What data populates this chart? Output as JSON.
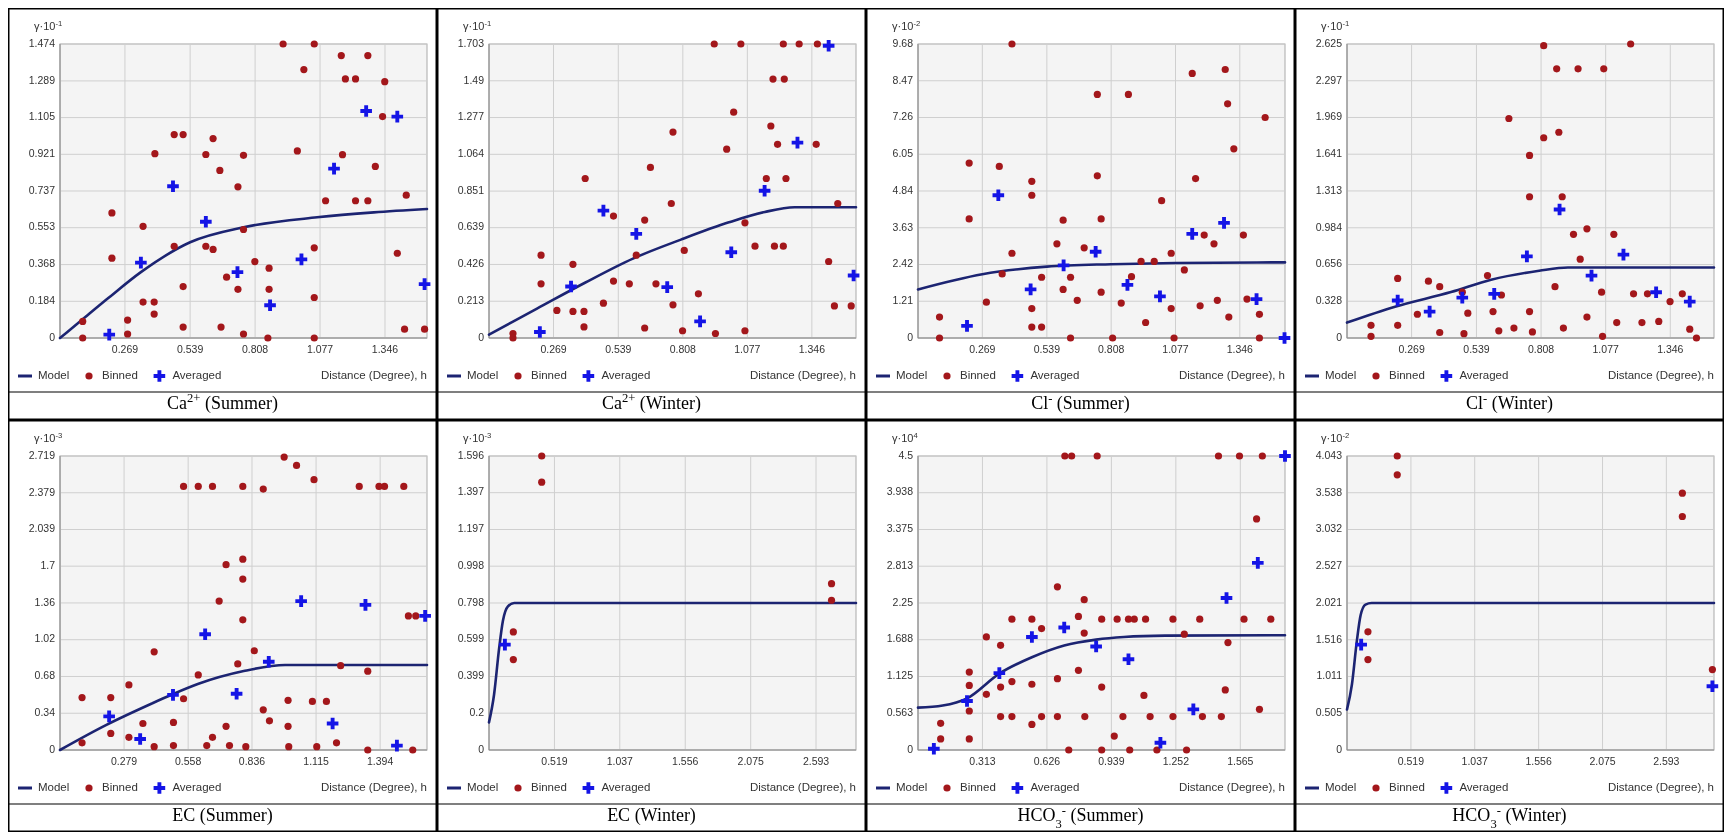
{
  "chart_data": [
    {
      "type": "scatter",
      "title": "Ca$^{2+}$ (Summer)",
      "ylabel": "γ·10$^{-1}$",
      "xlabel": "Distance (Degree), h",
      "xlim": [
        0,
        1.52
      ],
      "ylim": [
        0,
        1.474
      ],
      "xticks": [
        0.269,
        0.539,
        0.808,
        1.077,
        1.346
      ],
      "yticks": [
        0,
        0.184,
        0.368,
        0.553,
        0.737,
        0.921,
        1.105,
        1.289,
        1.474
      ],
      "grid": true,
      "legend": "bottom",
      "series": [
        {
          "name": "Model",
          "type": "line",
          "color": "#1c2472",
          "marker": "none",
          "x": [
            0,
            0.1,
            0.2,
            0.335,
            0.539,
            0.76,
            1.065,
            1.3,
            1.52
          ],
          "values": [
            0,
            0.1,
            0.2,
            0.33,
            0.48,
            0.555,
            0.605,
            0.63,
            0.647
          ]
        },
        {
          "name": "Binned",
          "type": "scatter",
          "color": "#a3171b",
          "marker": "circle",
          "x": [
            0.094,
            0.094,
            0.215,
            0.215,
            0.28,
            0.28,
            0.344,
            0.344,
            0.39,
            0.39,
            0.393,
            0.473,
            0.51,
            0.473,
            0.51,
            0.51,
            0.604,
            0.634,
            0.662,
            0.604,
            0.634,
            0.737,
            0.76,
            0.76,
            0.737,
            0.69,
            0.667,
            0.76,
            0.807,
            0.866,
            0.866,
            0.861,
            0.924,
            1.01,
            1.053,
            0.983,
            1.053,
            1.053,
            1.053,
            1.1,
            1.165,
            1.182,
            1.224,
            1.17,
            1.224,
            1.275,
            1.275,
            1.345,
            1.306,
            1.336,
            1.434,
            1.397,
            1.427,
            1.51
          ],
          "values": [
            0.083,
            0,
            0.627,
            0.4,
            0.09,
            0.02,
            0.56,
            0.18,
            0.18,
            0.12,
            0.924,
            1.02,
            1.02,
            0.46,
            0.258,
            0.055,
            0.92,
            1.0,
            0.84,
            0.46,
            0.444,
            0.758,
            0.916,
            0.544,
            0.244,
            0.305,
            0.055,
            0.02,
            0.383,
            0.35,
            0.244,
            0,
            1.474,
            1.346,
            1.474,
            0.938,
            0.452,
            0.203,
            0,
            0.688,
            1.416,
            1.299,
            1.299,
            0.919,
            0.688,
            1.416,
            0.688,
            1.285,
            0.86,
            1.11,
            0.716,
            0.425,
            0.044,
            0.044
          ]
        },
        {
          "name": "Averaged",
          "type": "scatter",
          "color": "#1414e6",
          "marker": "cross",
          "x": [
            0.204,
            0.335,
            0.468,
            0.604,
            0.735,
            0.87,
            1.0,
            1.135,
            1.268,
            1.397,
            1.51
          ],
          "values": [
            0.017,
            0.378,
            0.761,
            0.583,
            0.33,
            0.164,
            0.394,
            0.849,
            1.138,
            1.11,
            0.27
          ]
        }
      ]
    },
    {
      "type": "scatter",
      "title": "Ca$^{2+}$ (Winter)",
      "ylabel": "γ·10$^{-1}$",
      "xlabel": "Distance (Degree), h",
      "xlim": [
        0,
        1.53
      ],
      "ylim": [
        0,
        1.703
      ],
      "xticks": [
        0.269,
        0.539,
        0.808,
        1.077,
        1.346
      ],
      "yticks": [
        0,
        0.213,
        0.426,
        0.639,
        0.851,
        1.064,
        1.277,
        1.49,
        1.703
      ],
      "grid": true,
      "legend": "bottom",
      "series": [
        {
          "name": "Model",
          "type": "line",
          "color": "#1c2472",
          "marker": "none",
          "x": [
            0,
            0.2,
            0.4,
            0.6,
            0.8,
            1.0,
            1.15,
            1.274,
            1.53
          ],
          "values": [
            0.02,
            0.17,
            0.32,
            0.46,
            0.57,
            0.67,
            0.73,
            0.757,
            0.757
          ]
        },
        {
          "name": "Binned",
          "type": "scatter",
          "color": "#a3171b",
          "marker": "circle",
          "x": [
            0.1,
            0.1,
            0.217,
            0.217,
            0.283,
            0.35,
            0.35,
            0.396,
            0.396,
            0.401,
            0.477,
            0.519,
            0.519,
            0.585,
            0.614,
            0.649,
            0.673,
            0.649,
            0.696,
            0.76,
            0.767,
            0.767,
            0.814,
            0.807,
            0.873,
            0.939,
            0.944,
            0.991,
            1.02,
            1.05,
            1.067,
            1.067,
            1.109,
            1.156,
            1.175,
            1.184,
            1.19,
            1.203,
            1.227,
            1.231,
            1.238,
            1.227,
            1.293,
            1.369,
            1.364,
            1.416,
            1.44,
            1.454,
            1.51
          ],
          "values": [
            0.026,
            0,
            0.48,
            0.314,
            0.16,
            0.427,
            0.154,
            0.154,
            0.064,
            0.924,
            0.202,
            0.33,
            0.706,
            0.314,
            0.48,
            0.683,
            0.988,
            0.058,
            0.314,
            0.779,
            1.193,
            0.192,
            0.507,
            0.042,
            0.256,
            1.703,
            0.026,
            1.094,
            1.308,
            1.703,
            0.667,
            0.042,
            0.532,
            0.924,
            1.228,
            1.5,
            0.532,
            1.122,
            1.703,
            1.5,
            0.924,
            0.532,
            1.703,
            1.703,
            1.122,
            0.443,
            0.186,
            0.779,
            0.186
          ]
        },
        {
          "name": "Averaged",
          "type": "scatter",
          "color": "#1414e6",
          "marker": "cross",
          "x": [
            0.212,
            0.342,
            0.477,
            0.614,
            0.743,
            0.88,
            1.01,
            1.149,
            1.286,
            1.416,
            1.52
          ],
          "values": [
            0.035,
            0.298,
            0.738,
            0.603,
            0.295,
            0.096,
            0.497,
            0.853,
            1.132,
            1.693,
            0.362
          ]
        }
      ]
    },
    {
      "type": "scatter",
      "title": "Cl$^{-}$ (Summer)",
      "ylabel": "γ·10$^{-2}$",
      "xlabel": "Distance (Degree), h",
      "xlim": [
        0,
        1.535
      ],
      "ylim": [
        0,
        9.68
      ],
      "xticks": [
        0.269,
        0.539,
        0.808,
        1.077,
        1.346
      ],
      "yticks": [
        0,
        1.21,
        2.42,
        3.63,
        4.84,
        6.05,
        7.26,
        8.47,
        9.68
      ],
      "grid": true,
      "legend": "bottom",
      "series": [
        {
          "name": "Model",
          "type": "line",
          "color": "#1c2472",
          "marker": "none",
          "x": [
            0,
            0.269,
            0.539,
            0.808,
            1.077,
            1.535
          ],
          "values": [
            1.6,
            2.1,
            2.35,
            2.43,
            2.47,
            2.49
          ]
        },
        {
          "name": "Binned",
          "type": "scatter",
          "color": "#a3171b",
          "marker": "circle",
          "x": [
            0.09,
            0.09,
            0.214,
            0.214,
            0.286,
            0.34,
            0.352,
            0.393,
            0.393,
            0.476,
            0.476,
            0.476,
            0.476,
            0.517,
            0.517,
            0.581,
            0.607,
            0.607,
            0.638,
            0.666,
            0.638,
            0.695,
            0.75,
            0.75,
            0.766,
            0.766,
            0.814,
            0.85,
            0.88,
            0.893,
            0.933,
            0.952,
            0.988,
            1.019,
            1.059,
            1.059,
            1.071,
            1.114,
            1.147,
            1.161,
            1.18,
            1.197,
            1.238,
            1.252,
            1.285,
            1.295,
            1.3,
            1.321,
            1.361,
            1.376,
            1.428,
            1.452,
            1.428
          ],
          "values": [
            0.69,
            0,
            3.92,
            5.76,
            1.18,
            5.65,
            2.11,
            9.68,
            2.79,
            5.16,
            4.7,
            0.97,
            0.36,
            2.0,
            0.36,
            3.1,
            3.88,
            1.6,
            2.0,
            1.24,
            0,
            2.97,
            8.02,
            5.34,
            3.92,
            1.51,
            0,
            1.15,
            8.02,
            2.02,
            2.52,
            0.51,
            2.52,
            4.52,
            2.79,
            0.97,
            0,
            2.24,
            8.71,
            5.25,
            1.06,
            3.39,
            3.1,
            1.24,
            8.84,
            7.71,
            0.69,
            6.23,
            3.39,
            1.28,
            0.78,
            7.26,
            0
          ]
        },
        {
          "name": "Averaged",
          "type": "scatter",
          "color": "#1414e6",
          "marker": "cross",
          "x": [
            0.205,
            0.336,
            0.471,
            0.609,
            0.743,
            0.876,
            1.012,
            1.147,
            1.28,
            1.416,
            1.533
          ],
          "values": [
            0.4,
            4.7,
            1.6,
            2.39,
            2.84,
            1.75,
            1.37,
            3.43,
            3.79,
            1.28,
            0
          ]
        }
      ]
    },
    {
      "type": "scatter",
      "title": "Cl$^{-}$ (Winter)",
      "ylabel": "γ·10$^{-1}$",
      "xlabel": "Distance (Degree), h",
      "xlim": [
        0,
        1.528
      ],
      "ylim": [
        0,
        2.625
      ],
      "xticks": [
        0.269,
        0.539,
        0.808,
        1.077,
        1.346
      ],
      "yticks": [
        0,
        0.328,
        0.656,
        0.984,
        1.313,
        1.641,
        1.969,
        2.297,
        2.625
      ],
      "grid": true,
      "legend": "bottom",
      "series": [
        {
          "name": "Model",
          "type": "line",
          "color": "#1c2472",
          "marker": "none",
          "x": [
            0,
            0.2,
            0.433,
            0.6,
            0.8,
            0.92,
            1.528
          ],
          "values": [
            0.138,
            0.28,
            0.41,
            0.52,
            0.6,
            0.63,
            0.63
          ]
        },
        {
          "name": "Binned",
          "type": "scatter",
          "color": "#a3171b",
          "marker": "circle",
          "x": [
            0.1,
            0.1,
            0.211,
            0.211,
            0.293,
            0.339,
            0.386,
            0.386,
            0.48,
            0.503,
            0.487,
            0.585,
            0.608,
            0.643,
            0.632,
            0.674,
            0.695,
            0.76,
            0.76,
            0.76,
            0.772,
            0.819,
            0.819,
            0.866,
            0.873,
            0.882,
            0.896,
            0.901,
            0.943,
            0.962,
            0.971,
            0.999,
            0.999,
            1.06,
            1.069,
            1.064,
            1.111,
            1.123,
            1.181,
            1.193,
            1.228,
            1.251,
            1.298,
            1.345,
            1.396,
            1.427,
            1.455
          ],
          "values": [
            0.113,
            0.015,
            0.532,
            0.113,
            0.212,
            0.507,
            0.458,
            0.049,
            0.409,
            0.222,
            0.039,
            0.557,
            0.236,
            0.384,
            0.064,
            1.96,
            0.089,
            1.63,
            1.261,
            0.236,
            0.054,
            1.788,
            2.61,
            0.458,
            2.403,
            1.837,
            1.261,
            0.089,
            0.926,
            2.403,
            0.704,
            0.187,
            0.975,
            0.409,
            2.403,
            0.015,
            0.926,
            0.138,
            2.625,
            0.394,
            0.138,
            0.394,
            0.148,
            0.325,
            0.394,
            0.079,
            0
          ]
        },
        {
          "name": "Averaged",
          "type": "scatter",
          "color": "#1414e6",
          "marker": "cross",
          "x": [
            0.211,
            0.344,
            0.48,
            0.613,
            0.749,
            0.885,
            1.018,
            1.151,
            1.287,
            1.427
          ],
          "values": [
            0.335,
            0.236,
            0.36,
            0.394,
            0.729,
            1.147,
            0.557,
            0.744,
            0.409,
            0.325
          ]
        }
      ]
    },
    {
      "type": "scatter",
      "title": "EC (Summer)",
      "ylabel": "γ·10$^{-3}$",
      "xlabel": "Distance (Degree), h",
      "xlim": [
        0,
        1.598
      ],
      "ylim": [
        0,
        2.719
      ],
      "xticks": [
        0.279,
        0.558,
        0.836,
        1.115,
        1.394
      ],
      "yticks": [
        0,
        0.34,
        0.68,
        1.02,
        1.36,
        1.7,
        2.039,
        2.379,
        2.719
      ],
      "grid": true,
      "legend": "bottom",
      "series": [
        {
          "name": "Model",
          "type": "line",
          "color": "#1c2472",
          "marker": "none",
          "x": [
            0,
            0.2,
            0.4,
            0.49,
            0.6,
            0.8,
            0.98,
            1.598
          ],
          "values": [
            0,
            0.23,
            0.43,
            0.515,
            0.61,
            0.73,
            0.786,
            0.786
          ]
        },
        {
          "name": "Binned",
          "type": "scatter",
          "color": "#a3171b",
          "marker": "circle",
          "x": [
            0.096,
            0.096,
            0.221,
            0.221,
            0.3,
            0.3,
            0.361,
            0.41,
            0.41,
            0.494,
            0.494,
            0.538,
            0.538,
            0.602,
            0.602,
            0.639,
            0.664,
            0.664,
            0.693,
            0.723,
            0.723,
            0.738,
            0.774,
            0.796,
            0.796,
            0.796,
            0.796,
            0.809,
            0.846,
            0.885,
            0.885,
            0.912,
            0.976,
            0.993,
            0.993,
            0.996,
            1.03,
            1.099,
            1.106,
            1.118,
            1.16,
            1.204,
            1.222,
            1.303,
            1.34,
            1.34,
            1.389,
            1.413,
            1.497,
            1.517,
            1.549,
            1.536
          ],
          "values": [
            0.485,
            0.066,
            0.485,
            0.153,
            0.602,
            0.117,
            0.245,
            0.908,
            0.031,
            0.255,
            0.041,
            2.438,
            0.474,
            2.438,
            0.694,
            0.041,
            2.438,
            0.117,
            1.377,
            1.714,
            0.219,
            0.041,
            0.796,
            2.438,
            1.765,
            1.581,
            1.204,
            0.031,
            0.918,
            2.413,
            0.372,
            0.27,
            2.709,
            0.459,
            0.219,
            0.031,
            2.632,
            0.449,
            2.5,
            0.031,
            0.449,
            0.066,
            0.78,
            2.438,
            0.729,
            0,
            2.438,
            2.438,
            2.438,
            1.24,
            1.24,
            0
          ]
        },
        {
          "name": "Averaged",
          "type": "scatter",
          "color": "#1414e6",
          "marker": "cross",
          "x": [
            0.214,
            0.349,
            0.492,
            0.632,
            0.769,
            0.909,
            1.05,
            1.187,
            1.33,
            1.467,
            1.59
          ],
          "values": [
            0.311,
            0.102,
            0.51,
            1.071,
            0.52,
            0.816,
            1.377,
            0.245,
            1.342,
            0.041,
            1.24
          ]
        }
      ]
    },
    {
      "type": "scatter",
      "title": "EC (Winter)",
      "ylabel": "γ·10$^{-3}$",
      "xlabel": "Distance (Degree), h",
      "xlim": [
        0,
        2.91
      ],
      "ylim": [
        0,
        1.596
      ],
      "xticks": [
        0.519,
        1.037,
        1.556,
        2.075,
        2.593
      ],
      "yticks": [
        0,
        0.2,
        0.399,
        0.599,
        0.798,
        0.998,
        1.197,
        1.397,
        1.596
      ],
      "grid": true,
      "legend": "bottom",
      "series": [
        {
          "name": "Model",
          "type": "line",
          "color": "#1c2472",
          "marker": "none",
          "x": [
            0,
            0.04,
            0.08,
            0.11,
            0.15,
            0.2,
            2.91
          ],
          "values": [
            0.15,
            0.3,
            0.55,
            0.7,
            0.78,
            0.798,
            0.798
          ]
        },
        {
          "name": "Binned",
          "type": "scatter",
          "color": "#a3171b",
          "marker": "circle",
          "x": [
            0.418,
            0.418,
            0.193,
            0.193,
            2.716,
            2.716
          ],
          "values": [
            1.596,
            1.454,
            0.641,
            0.491,
            0.903,
            0.813
          ]
        },
        {
          "name": "Averaged",
          "type": "scatter",
          "color": "#1414e6",
          "marker": "cross",
          "x": [
            0.126
          ],
          "values": [
            0.572
          ]
        }
      ]
    },
    {
      "type": "scatter",
      "title": "HCO$_{3}$$^{-}$ (Summer)",
      "ylabel": "γ·10$^{4}$",
      "xlabel": "Distance (Degree), h",
      "xlim": [
        0,
        1.782
      ],
      "ylim": [
        0,
        4.5
      ],
      "xticks": [
        0.313,
        0.626,
        0.939,
        1.252,
        1.565
      ],
      "yticks": [
        0,
        0.563,
        1.125,
        1.688,
        2.25,
        2.813,
        3.375,
        3.938,
        4.5
      ],
      "grid": true,
      "legend": "bottom",
      "series": [
        {
          "name": "Model",
          "type": "line",
          "color": "#1c2472",
          "marker": "none",
          "x": [
            0,
            0.12,
            0.238,
            0.395,
            0.553,
            0.71,
            0.865,
            1.0,
            1.2,
            1.782
          ],
          "values": [
            0.648,
            0.68,
            0.79,
            1.17,
            1.42,
            1.6,
            1.69,
            1.73,
            1.75,
            1.756
          ]
        },
        {
          "name": "Binned",
          "type": "scatter",
          "color": "#a3171b",
          "marker": "circle",
          "x": [
            0.11,
            0.11,
            0.249,
            0.249,
            0.249,
            0.249,
            0.332,
            0.332,
            0.401,
            0.401,
            0.401,
            0.456,
            0.456,
            0.456,
            0.553,
            0.553,
            0.553,
            0.6,
            0.6,
            0.677,
            0.677,
            0.677,
            0.713,
            0.746,
            0.732,
            0.779,
            0.779,
            0.807,
            0.807,
            0.81,
            0.87,
            0.892,
            0.892,
            0.892,
            0.953,
            0.967,
            0.995,
            1.022,
            1.05,
            1.028,
            1.097,
            1.105,
            1.127,
            1.16,
            1.238,
            1.238,
            1.293,
            1.304,
            1.368,
            1.381,
            1.459,
            1.473,
            1.492,
            1.505,
            1.561,
            1.583,
            1.644,
            1.658,
            1.672,
            1.713
          ],
          "values": [
            0.409,
            0.17,
            1.193,
            0.989,
            0.597,
            0.17,
            1.73,
            0.852,
            1.602,
            0.963,
            0.511,
            2.003,
            1.048,
            0.511,
            2.003,
            1.006,
            0.392,
            1.858,
            0.511,
            2.497,
            1.091,
            0.511,
            4.5,
            4.5,
            0,
            2.045,
            1.219,
            2.301,
            1.79,
            0.511,
            4.5,
            0.963,
            2.003,
            0,
            0.213,
            2.003,
            0.511,
            2.003,
            2.003,
            0,
            0.835,
            2.003,
            0.511,
            0,
            2.003,
            0.511,
            1.773,
            0,
            2.003,
            0.511,
            4.5,
            0.511,
            0.92,
            1.645,
            4.5,
            2.003,
            3.537,
            0.622,
            4.5,
            2.003
          ]
        },
        {
          "name": "Averaged",
          "type": "scatter",
          "color": "#1414e6",
          "marker": "cross",
          "x": [
            0.077,
            0.238,
            0.395,
            0.553,
            0.71,
            0.865,
            1.022,
            1.177,
            1.337,
            1.498,
            1.65,
            1.782
          ],
          "values": [
            0.02,
            0.75,
            1.176,
            1.73,
            1.875,
            1.585,
            1.389,
            0.111,
            0.622,
            2.327,
            2.864,
            4.5
          ]
        }
      ]
    },
    {
      "type": "scatter",
      "title": "HCO$_{3}$$^{-}$ (Winter)",
      "ylabel": "γ·10$^{-2}$",
      "xlabel": "Distance (Degree), h",
      "xlim": [
        0,
        2.98
      ],
      "ylim": [
        0,
        4.043
      ],
      "xticks": [
        0.519,
        1.037,
        1.556,
        2.075,
        2.593
      ],
      "yticks": [
        0,
        0.505,
        1.011,
        1.516,
        2.021,
        2.527,
        3.032,
        3.538,
        4.043
      ],
      "grid": true,
      "legend": "bottom",
      "series": [
        {
          "name": "Model",
          "type": "line",
          "color": "#1c2472",
          "marker": "none",
          "x": [
            0,
            0.04,
            0.08,
            0.11,
            0.15,
            0.2,
            2.98
          ],
          "values": [
            0.557,
            0.9,
            1.5,
            1.85,
            2.0,
            2.021,
            2.021
          ]
        },
        {
          "name": "Binned",
          "type": "scatter",
          "color": "#a3171b",
          "marker": "circle",
          "x": [
            0.408,
            0.408,
            0.17,
            0.17,
            2.723,
            2.723,
            2.967
          ],
          "values": [
            4.043,
            3.784,
            1.625,
            1.243,
            3.532,
            3.211,
            1.106
          ]
        },
        {
          "name": "Averaged",
          "type": "scatter",
          "color": "#1414e6",
          "marker": "cross",
          "x": [
            0.115,
            2.967
          ],
          "values": [
            1.449,
            0.877
          ]
        }
      ]
    }
  ]
}
